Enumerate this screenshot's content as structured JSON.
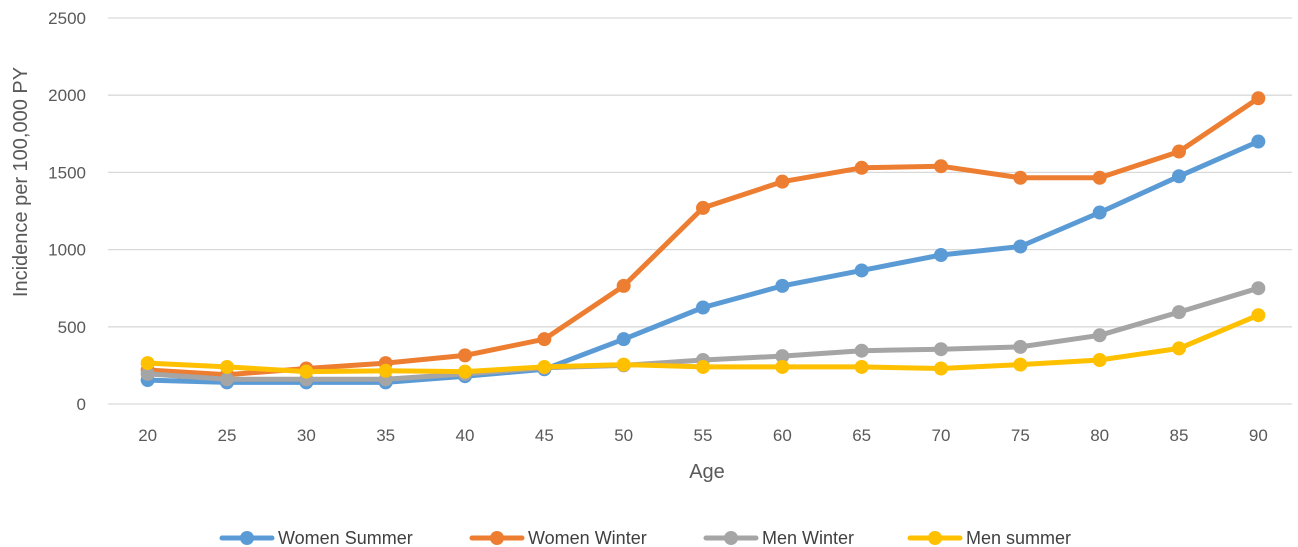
{
  "chart_data": {
    "type": "line",
    "title": "",
    "xlabel": "Age",
    "ylabel": "Incidence per 100,000 PY",
    "ylim": [
      0,
      2500
    ],
    "yticks": [
      0,
      500,
      1000,
      1500,
      2000,
      2500
    ],
    "grid": true,
    "legend_position": "bottom",
    "x": [
      20,
      25,
      30,
      35,
      40,
      45,
      50,
      55,
      60,
      65,
      70,
      75,
      80,
      85,
      90
    ],
    "series": [
      {
        "name": "Women Summer",
        "color": "#5B9BD5",
        "values": [
          155,
          140,
          140,
          140,
          180,
          225,
          420,
          625,
          765,
          865,
          965,
          1020,
          1240,
          1475,
          1700
        ]
      },
      {
        "name": "Women Winter",
        "color": "#ED7D31",
        "values": [
          220,
          190,
          230,
          265,
          315,
          420,
          765,
          1270,
          1440,
          1530,
          1540,
          1465,
          1465,
          1635,
          1980
        ]
      },
      {
        "name": "Men Winter",
        "color": "#A5A5A5",
        "values": [
          195,
          160,
          160,
          160,
          195,
          235,
          250,
          285,
          310,
          345,
          355,
          370,
          445,
          595,
          750
        ]
      },
      {
        "name": "Men summer",
        "color": "#FFC000",
        "values": [
          265,
          240,
          210,
          215,
          210,
          240,
          255,
          240,
          240,
          240,
          230,
          255,
          285,
          360,
          575
        ]
      }
    ]
  }
}
